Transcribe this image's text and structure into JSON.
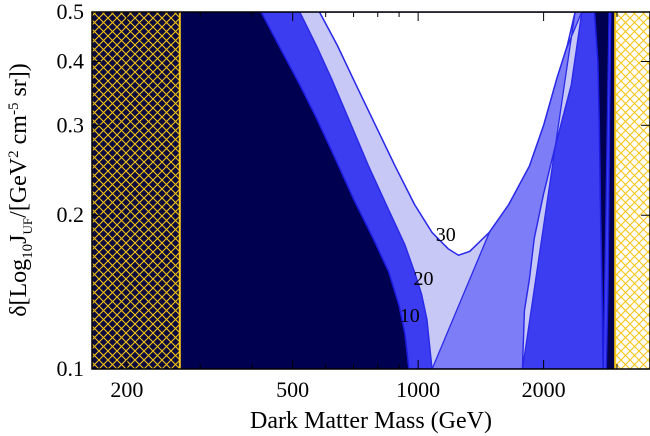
{
  "chart_data": {
    "type": "contour",
    "xlabel": "Dark Matter Mass (GeV)",
    "ylabel_parts": [
      "δ[Log",
      "10",
      "J",
      "UF",
      "/[GeV",
      "2",
      " cm",
      "-5",
      " sr])"
    ],
    "xscale": "log",
    "yscale": "log",
    "xlim": [
      165,
      3600
    ],
    "ylim": [
      0.1,
      0.5
    ],
    "x_tick_labels": [
      {
        "value": 200,
        "label": "200"
      },
      {
        "value": 500,
        "label": "500"
      },
      {
        "value": 1000,
        "label": "1000"
      },
      {
        "value": 2000,
        "label": "2000"
      }
    ],
    "y_tick_labels": [
      {
        "value": 0.1,
        "label": "0.1"
      },
      {
        "value": 0.2,
        "label": "0.2"
      },
      {
        "value": 0.3,
        "label": "0.3"
      },
      {
        "value": 0.4,
        "label": "0.4"
      },
      {
        "value": 0.5,
        "label": "0.5"
      }
    ],
    "excluded_regions": [
      {
        "x_range": [
          165,
          268
        ],
        "color": "#f5c518",
        "pattern": "crosshatch",
        "background": "#0b0b3d"
      },
      {
        "x_range": [
          2970,
          3600
        ],
        "color": "#f5c518",
        "pattern": "crosshatch",
        "background": "#ffffff"
      }
    ],
    "base_fill": "#000050",
    "contours": [
      {
        "level": 10,
        "label": "10",
        "label_at": [
          955,
          0.1235
        ],
        "color": "#3c3cf0",
        "edge_color": "#1c1ce0",
        "left_boundary": [
          [
            420,
            0.5
          ],
          [
            470,
            0.42
          ],
          [
            520,
            0.36
          ],
          [
            570,
            0.31
          ],
          [
            630,
            0.26
          ],
          [
            700,
            0.215
          ],
          [
            780,
            0.18
          ],
          [
            850,
            0.155
          ],
          [
            900,
            0.133
          ],
          [
            930,
            0.117
          ],
          [
            950,
            0.1
          ]
        ],
        "right_boundary": [
          [
            2650,
            0.5
          ],
          [
            2700,
            0.4
          ],
          [
            2720,
            0.3
          ],
          [
            2740,
            0.2
          ],
          [
            2760,
            0.15
          ],
          [
            2780,
            0.1
          ]
        ]
      },
      {
        "level": 20,
        "label": "20",
        "label_at": [
          1030,
          0.146
        ],
        "color": "#7d7df8",
        "edge_color": "#2a2ae8",
        "left_boundary": [
          [
            520,
            0.5
          ],
          [
            570,
            0.43
          ],
          [
            620,
            0.37
          ],
          [
            680,
            0.31
          ],
          [
            760,
            0.25
          ],
          [
            850,
            0.205
          ],
          [
            930,
            0.175
          ],
          [
            980,
            0.155
          ],
          [
            1020,
            0.14
          ],
          [
            1050,
            0.125
          ],
          [
            1080,
            0.1
          ]
        ],
        "right_boundary": [
          [
            2470,
            0.5
          ],
          [
            2330,
            0.36
          ],
          [
            2150,
            0.28
          ],
          [
            2000,
            0.22
          ],
          [
            1900,
            0.18
          ],
          [
            1850,
            0.15
          ],
          [
            1800,
            0.13
          ],
          [
            1780,
            0.1
          ]
        ]
      },
      {
        "level": 30,
        "label": "30",
        "label_at": [
          1165,
          0.178
        ],
        "color": "#c8c8f7",
        "edge_color": "#2a2ae8",
        "left_boundary": [
          [
            580,
            0.5
          ],
          [
            640,
            0.43
          ],
          [
            710,
            0.36
          ],
          [
            790,
            0.3
          ],
          [
            880,
            0.25
          ],
          [
            980,
            0.21
          ],
          [
            1080,
            0.185
          ],
          [
            1180,
            0.172
          ],
          [
            1250,
            0.167
          ]
        ],
        "right_boundary": [
          [
            1250,
            0.167
          ],
          [
            1330,
            0.17
          ],
          [
            1480,
            0.185
          ],
          [
            1650,
            0.21
          ],
          [
            1850,
            0.25
          ],
          [
            2000,
            0.3
          ],
          [
            2150,
            0.37
          ],
          [
            2280,
            0.43
          ],
          [
            2380,
            0.5
          ]
        ],
        "bottom_region": [
          [
            1080,
            0.1
          ],
          [
            1780,
            0.1
          ]
        ]
      }
    ],
    "right_sliver": {
      "color": "#3c3cf0",
      "points": [
        [
          2780,
          0.1
        ],
        [
          2820,
          0.2
        ],
        [
          2850,
          0.35
        ],
        [
          2870,
          0.5
        ],
        [
          2900,
          0.5
        ],
        [
          2880,
          0.3
        ],
        [
          2860,
          0.15
        ],
        [
          2830,
          0.1
        ]
      ]
    },
    "grid": false,
    "legend": "none"
  }
}
